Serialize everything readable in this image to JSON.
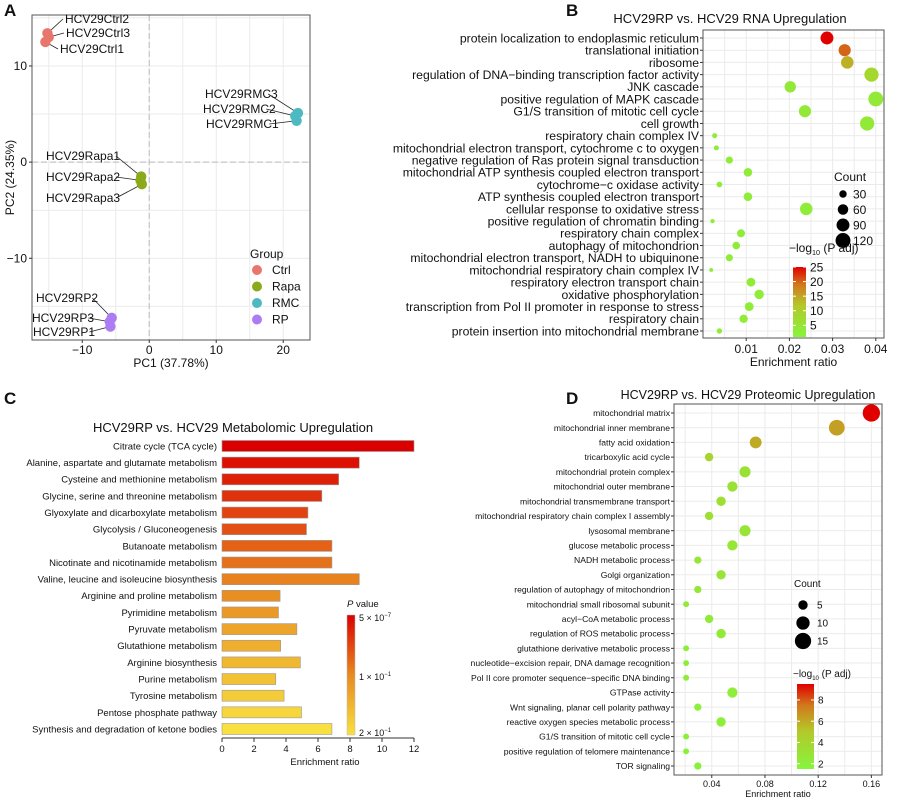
{
  "chart_data": [
    {
      "panel": "A",
      "type": "scatter",
      "xlabel": "PC1 (37.78%)",
      "ylabel": "PC2 (24.35%)",
      "xlim": [
        -17.5,
        24
      ],
      "ylim": [
        -18.5,
        15.3
      ],
      "xticks": [
        -10,
        0,
        10,
        20
      ],
      "yticks": [
        -10,
        0,
        10
      ],
      "grid": true,
      "legend": {
        "title": "Group",
        "position": "bottom-right",
        "items": [
          {
            "name": "Ctrl",
            "color": "#E8766D"
          },
          {
            "name": "Rapa",
            "color": "#8AAA1C"
          },
          {
            "name": "RMC",
            "color": "#4DBAC2"
          },
          {
            "name": "RP",
            "color": "#AE7CF2"
          }
        ]
      },
      "points": [
        {
          "label": "HCV29Ctrl2",
          "group": "Ctrl",
          "x": -15.2,
          "y": 13.4
        },
        {
          "label": "HCV29Ctrl3",
          "group": "Ctrl",
          "x": -15.0,
          "y": 13.0
        },
        {
          "label": "HCV29Ctrl1",
          "group": "Ctrl",
          "x": -15.5,
          "y": 12.5
        },
        {
          "label": "HCV29RMC3",
          "group": "RMC",
          "x": 22.2,
          "y": 5.1
        },
        {
          "label": "HCV29RMC2",
          "group": "RMC",
          "x": 21.8,
          "y": 4.8
        },
        {
          "label": "HCV29RMC1",
          "group": "RMC",
          "x": 22.0,
          "y": 4.3
        },
        {
          "label": "HCV29Rapa1",
          "group": "Rapa",
          "x": -1.2,
          "y": -1.5
        },
        {
          "label": "HCV29Rapa2",
          "group": "Rapa",
          "x": -1.3,
          "y": -1.9
        },
        {
          "label": "HCV29Rapa3",
          "group": "Rapa",
          "x": -1.1,
          "y": -2.3
        },
        {
          "label": "HCV29RP2",
          "group": "RP",
          "x": -5.6,
          "y": -16.2
        },
        {
          "label": "HCV29RP3",
          "group": "RP",
          "x": -5.9,
          "y": -16.6
        },
        {
          "label": "HCV29RP1",
          "group": "RP",
          "x": -5.8,
          "y": -17.1
        }
      ]
    },
    {
      "panel": "B",
      "type": "scatter",
      "title": "HCV29RP vs. HCV29 RNA Upregulation",
      "xlabel": "Enrichment ratio",
      "xlim": [
        0,
        0.0419
      ],
      "xticks": [
        0.01,
        0.02,
        0.03,
        0.04
      ],
      "size_legend": {
        "title": "Count",
        "values": [
          30,
          60,
          90,
          120
        ]
      },
      "color_legend": {
        "title": "−log",
        "title_sub": "10",
        "title_tail": " (P adj)",
        "ticks": [
          25,
          20,
          15,
          10,
          5
        ],
        "range": [
          1,
          25
        ]
      },
      "terms": [
        {
          "term": "protein localization to endoplasmic reticulum",
          "ratio": 0.0287,
          "count": 90,
          "neglogp": 25
        },
        {
          "term": "translational initiation",
          "ratio": 0.0328,
          "count": 80,
          "neglogp": 20
        },
        {
          "term": "ribosome",
          "ratio": 0.0334,
          "count": 85,
          "neglogp": 14
        },
        {
          "term": "regulation of DNA−binding transcription factor activity",
          "ratio": 0.039,
          "count": 110,
          "neglogp": 8
        },
        {
          "term": "JNK cascade",
          "ratio": 0.0202,
          "count": 70,
          "neglogp": 4
        },
        {
          "term": "positive regulation of MAPK cascade",
          "ratio": 0.04,
          "count": 120,
          "neglogp": 4
        },
        {
          "term": "G1/S transition of mitotic cell cycle",
          "ratio": 0.0236,
          "count": 80,
          "neglogp": 4
        },
        {
          "term": "cell growth",
          "ratio": 0.038,
          "count": 110,
          "neglogp": 4
        },
        {
          "term": "respiratory chain complex IV",
          "ratio": 0.0027,
          "count": 14,
          "neglogp": 3
        },
        {
          "term": "mitochondrial electron transport, cytochrome c to oxygen",
          "ratio": 0.0031,
          "count": 14,
          "neglogp": 3
        },
        {
          "term": "negative regulation of Ras protein signal transduction",
          "ratio": 0.0061,
          "count": 28,
          "neglogp": 3
        },
        {
          "term": "mitochondrial ATP synthesis coupled electron transport",
          "ratio": 0.0104,
          "count": 40,
          "neglogp": 3
        },
        {
          "term": "cytochrome−c oxidase activity",
          "ratio": 0.0038,
          "count": 18,
          "neglogp": 3
        },
        {
          "term": "ATP synthesis coupled electron transport",
          "ratio": 0.0104,
          "count": 40,
          "neglogp": 3
        },
        {
          "term": "cellular response to oxidative stress",
          "ratio": 0.0239,
          "count": 85,
          "neglogp": 3
        },
        {
          "term": "positive regulation of chromatin binding",
          "ratio": 0.0022,
          "count": 10,
          "neglogp": 3
        },
        {
          "term": "respiratory chain complex",
          "ratio": 0.0088,
          "count": 35,
          "neglogp": 3
        },
        {
          "term": "autophagy of mitochondrion",
          "ratio": 0.0077,
          "count": 32,
          "neglogp": 3
        },
        {
          "term": "mitochondrial electron transport, NADH to ubiquinone",
          "ratio": 0.0061,
          "count": 28,
          "neglogp": 3
        },
        {
          "term": "mitochondrial respiratory chain complex IV",
          "ratio": 0.0019,
          "count": 8,
          "neglogp": 3
        },
        {
          "term": "respiratory electron transport chain",
          "ratio": 0.0111,
          "count": 42,
          "neglogp": 3
        },
        {
          "term": "oxidative phosphorylation",
          "ratio": 0.013,
          "count": 48,
          "neglogp": 3
        },
        {
          "term": "transcription from Pol II promoter in response to stress",
          "ratio": 0.0107,
          "count": 42,
          "neglogp": 3
        },
        {
          "term": "respiratory chain",
          "ratio": 0.0094,
          "count": 38,
          "neglogp": 3
        },
        {
          "term": "protein insertion into mitochondrial membrane",
          "ratio": 0.0038,
          "count": 16,
          "neglogp": 3
        }
      ]
    },
    {
      "panel": "C",
      "type": "bar",
      "title": "HCV29RP vs. HCV29 Metabolomic Upregulation",
      "xlabel": "Enrichment ratio",
      "xlim": [
        0,
        12
      ],
      "xticks": [
        0,
        2,
        4,
        6,
        8,
        10,
        12
      ],
      "color_legend": {
        "title": "P",
        "title_tail": " value",
        "ticks": [
          {
            "label": "5 × 10",
            "exp": "−7"
          },
          {
            "label": "1 × 10",
            "exp": "−1"
          },
          {
            "label": "2 × 10",
            "exp": "−1"
          }
        ]
      },
      "categories": [
        "Citrate cycle (TCA cycle)",
        "Alanine, aspartate and glutamate metabolism",
        "Cysteine and methionine metabolism",
        "Glycine, serine and threonine metabolism",
        "Glyoxylate and dicarboxylate metabolism",
        "Glycolysis / Gluconeogenesis",
        "Butanoate metabolism",
        "Nicotinate and nicotinamide metabolism",
        "Valine, leucine and isoleucine biosynthesis",
        "Arginine and proline metabolism",
        "Pyrimidine metabolism",
        "Pyruvate metabolism",
        "Glutathione metabolism",
        "Arginine biosynthesis",
        "Purine metabolism",
        "Tyrosine metabolism",
        "Pentose phosphate pathway",
        "Synthesis and degradation of ketone bodies"
      ],
      "values": [
        12.0,
        8.58,
        7.29,
        6.24,
        5.37,
        5.28,
        6.87,
        6.87,
        8.58,
        3.63,
        3.53,
        4.68,
        3.67,
        4.9,
        3.36,
        3.88,
        4.97,
        6.87
      ],
      "color_rank": [
        0,
        0.06,
        0.12,
        0.18,
        0.24,
        0.29,
        0.35,
        0.41,
        0.47,
        0.53,
        0.59,
        0.65,
        0.71,
        0.76,
        0.82,
        0.88,
        0.94,
        1.0
      ]
    },
    {
      "panel": "D",
      "type": "scatter",
      "title": "HCV29RP vs. HCV29 Proteomic Upregulation",
      "xlabel": "Enrichment ratio",
      "xlim": [
        0.0116,
        0.168
      ],
      "xticks": [
        0.04,
        0.08,
        0.12,
        0.16
      ],
      "size_legend": {
        "title": "Count",
        "values": [
          5,
          10,
          15
        ]
      },
      "color_legend": {
        "title": "−log",
        "title_sub": "10",
        "title_tail": " (P adj)",
        "ticks": [
          8,
          6,
          4,
          2
        ],
        "range": [
          1.5,
          9.5
        ]
      },
      "terms": [
        {
          "term": "mitochondrial matrix",
          "ratio": 0.16,
          "count": 17,
          "neglogp": 9.5
        },
        {
          "term": "mitochondrial inner membrane",
          "ratio": 0.134,
          "count": 14,
          "neglogp": 6.3
        },
        {
          "term": "fatty acid oxidation",
          "ratio": 0.073,
          "count": 8,
          "neglogp": 6.0
        },
        {
          "term": "tricarboxylic acid cycle",
          "ratio": 0.038,
          "count": 4,
          "neglogp": 4.2
        },
        {
          "term": "mitochondrial protein complex",
          "ratio": 0.065,
          "count": 7,
          "neglogp": 3
        },
        {
          "term": "mitochondrial outer membrane",
          "ratio": 0.0555,
          "count": 6,
          "neglogp": 3
        },
        {
          "term": "mitochondrial transmembrane transport",
          "ratio": 0.047,
          "count": 5,
          "neglogp": 3.3
        },
        {
          "term": "mitochondrial respiratory chain complex I assembly",
          "ratio": 0.038,
          "count": 4,
          "neglogp": 3.3
        },
        {
          "term": "lysosomal membrane",
          "ratio": 0.065,
          "count": 7,
          "neglogp": 2.8
        },
        {
          "term": "glucose metabolic process",
          "ratio": 0.0555,
          "count": 6,
          "neglogp": 2.8
        },
        {
          "term": "NADH metabolic process",
          "ratio": 0.0295,
          "count": 3,
          "neglogp": 2.8
        },
        {
          "term": "Golgi organization",
          "ratio": 0.047,
          "count": 5,
          "neglogp": 2.8
        },
        {
          "term": "regulation of autophagy of mitochondrion",
          "ratio": 0.0295,
          "count": 3,
          "neglogp": 2.6
        },
        {
          "term": "mitochondrial small ribosomal subunit",
          "ratio": 0.0207,
          "count": 2,
          "neglogp": 2.5
        },
        {
          "term": "acyl−CoA metabolic process",
          "ratio": 0.038,
          "count": 4,
          "neglogp": 2.5
        },
        {
          "term": "regulation of ROS metabolic process",
          "ratio": 0.047,
          "count": 5,
          "neglogp": 2.4
        },
        {
          "term": "glutathione derivative metabolic process",
          "ratio": 0.0207,
          "count": 2,
          "neglogp": 2.2
        },
        {
          "term": "nucleotide−excision repair, DNA damage recognition",
          "ratio": 0.0207,
          "count": 2,
          "neglogp": 2.2
        },
        {
          "term": "Pol II core promoter sequence−specific DNA binding",
          "ratio": 0.0207,
          "count": 2,
          "neglogp": 2.2
        },
        {
          "term": "GTPase activity",
          "ratio": 0.0555,
          "count": 6,
          "neglogp": 2.1
        },
        {
          "term": "Wnt signaling, planar cell polarity pathway",
          "ratio": 0.0295,
          "count": 3,
          "neglogp": 2
        },
        {
          "term": "reactive oxygen species metabolic process",
          "ratio": 0.047,
          "count": 5,
          "neglogp": 2
        },
        {
          "term": "G1/S transition of mitotic cell cycle",
          "ratio": 0.0207,
          "count": 2,
          "neglogp": 1.9
        },
        {
          "term": "positive regulation of telomere maintenance",
          "ratio": 0.0207,
          "count": 2,
          "neglogp": 1.9
        },
        {
          "term": "TOR signaling",
          "ratio": 0.0295,
          "count": 3,
          "neglogp": 1.8
        }
      ]
    }
  ],
  "panel_letters": [
    "A",
    "B",
    "C",
    "D"
  ]
}
